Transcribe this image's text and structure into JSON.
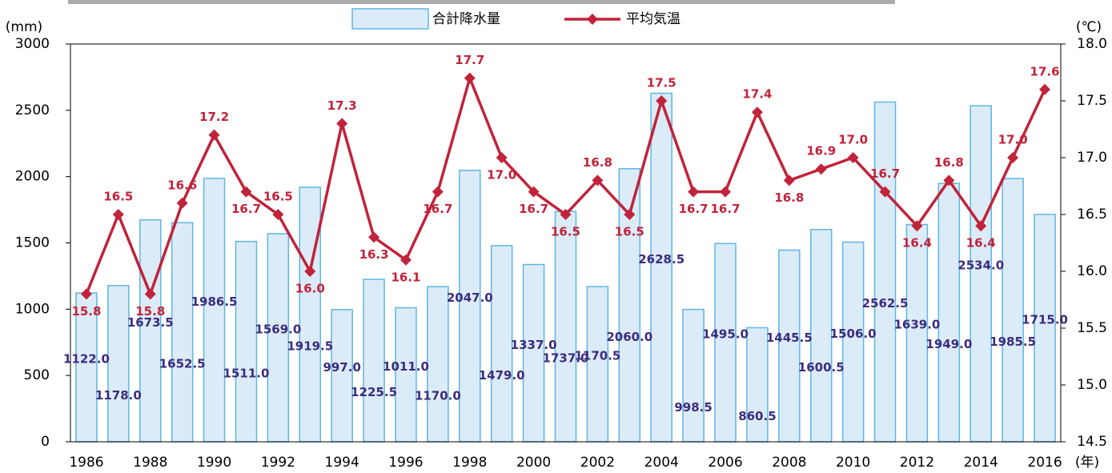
{
  "chart_data": {
    "type": "combo",
    "x_label": "(年)",
    "y_label": "(mm)",
    "y2_label": "(℃)",
    "categories": [
      "1986",
      null,
      "1988",
      null,
      "1990",
      null,
      "1992",
      null,
      "1994",
      null,
      "1996",
      null,
      "1998",
      null,
      "2000",
      null,
      "2002",
      null,
      "2004",
      null,
      "2006",
      null,
      "2008",
      null,
      "2010",
      null,
      "2012",
      null,
      "2014",
      null,
      "2016"
    ],
    "series": [
      {
        "name": "合計降水量",
        "type": "bar",
        "color": "#dcebf8",
        "stroke": "#5fb6e0",
        "label_color": "#3b2c7e",
        "values": [
          1122.0,
          1178.0,
          1673.5,
          1652.5,
          1986.5,
          1511.0,
          1569.0,
          1919.5,
          997.0,
          1225.5,
          1011.0,
          1170.0,
          2047.0,
          1479.0,
          1337.0,
          1737.0,
          1170.5,
          2060.0,
          2628.5,
          998.5,
          1495.0,
          860.5,
          1445.5,
          1600.5,
          1506.0,
          2562.5,
          1639.0,
          1949.0,
          2534.0,
          1985.5,
          1715.0
        ],
        "value_labels": [
          "1122.0",
          "1178.0",
          "1673.5",
          "1652.5",
          "1986.5",
          "1511.0",
          "1569.0",
          "1919.5",
          "997.0",
          "1225.5",
          "1011.0",
          "1170.0",
          "2047.0",
          "1479.0",
          "1337.0",
          "1737.0",
          "1170.5",
          "2060.0",
          "2628.5",
          "998.5",
          "1495.0",
          "860.5",
          "1445.5",
          "1600.5",
          "1506.0",
          "2562.5",
          "1639.0",
          "1949.0",
          "2534.0",
          "1985.5",
          "1715.0"
        ]
      },
      {
        "name": "平均気温",
        "type": "line",
        "axis": "y2",
        "color": "#c0233a",
        "label_color": "#c0233a",
        "values": [
          15.8,
          16.5,
          15.8,
          16.6,
          17.2,
          16.7,
          16.5,
          16.0,
          17.3,
          16.3,
          16.1,
          16.7,
          17.7,
          17.0,
          16.7,
          16.5,
          16.8,
          16.5,
          17.5,
          16.7,
          16.7,
          17.4,
          16.8,
          16.9,
          17.0,
          16.7,
          16.4,
          16.8,
          16.4,
          17.0,
          17.6
        ],
        "value_labels": [
          "15.8",
          "16.5",
          "15.8",
          "16.6",
          "17.2",
          "16.7",
          "16.5",
          "16.0",
          "17.3",
          "16.3",
          "16.1",
          "16.7",
          "17.7",
          "17.0",
          "16.7",
          "16.5",
          "16.8",
          "16.5",
          "17.5",
          "16.7",
          "16.7",
          "17.4",
          "16.8",
          "16.9",
          "17.0",
          "16.7",
          "16.4",
          "16.8",
          "16.4",
          "17.0",
          "17.6"
        ]
      }
    ],
    "ylim": [
      0,
      3000
    ],
    "yticks": [
      0,
      500,
      1000,
      1500,
      2000,
      2500,
      3000
    ],
    "y2lim": [
      14.5,
      18.0
    ],
    "y2ticks": [
      14.5,
      {
        "value": 15,
        "label": "15.0"
      },
      15.5,
      {
        "value": 16,
        "label": "16.0"
      },
      16.5,
      {
        "value": 17,
        "label": "17.0"
      },
      17.5,
      {
        "value": 18,
        "label": "18.0"
      }
    ]
  }
}
